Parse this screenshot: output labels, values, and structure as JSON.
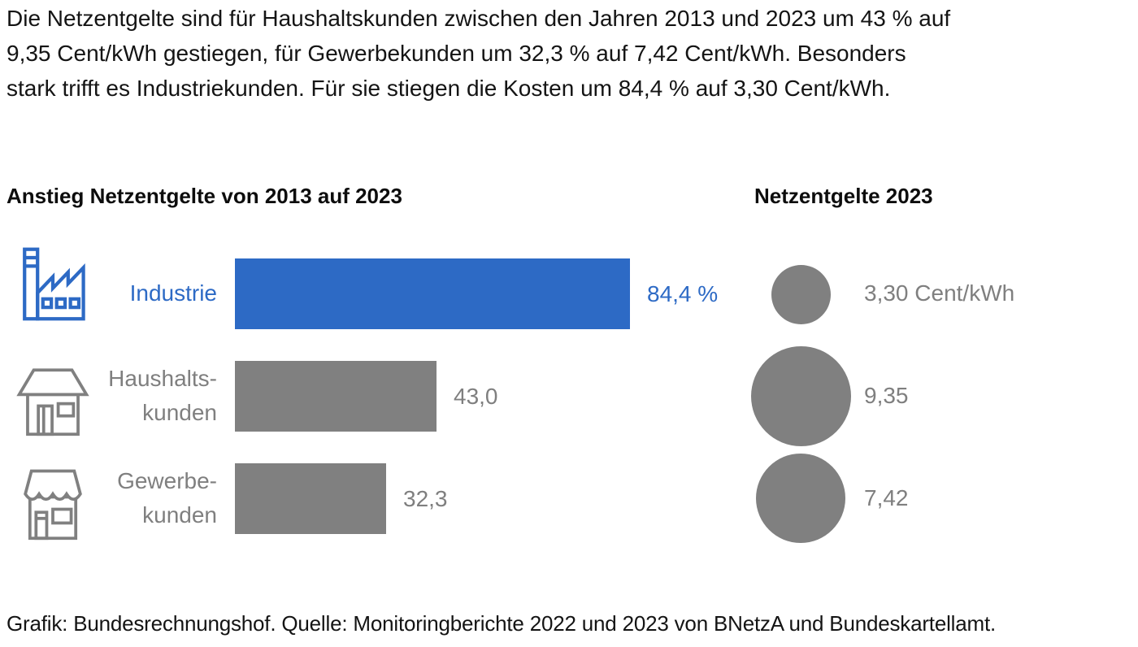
{
  "colors": {
    "accent_blue": "#2d6ac5",
    "gray": "#808080",
    "text_gray": "#7f7f7f",
    "text_dark": "#141414",
    "background": "#ffffff"
  },
  "header": {
    "text": "Die Netzentgelte sind für Haushaltskunden zwischen den Jahren 2013 und 2023 um 43 % auf\n9,35 Cent/kWh gestiegen, für Gewerbekunden um 32,3 % auf 7,42 Cent/kWh. Besonders\nstark trifft es Industriekunden. Für sie stiegen die Kosten um 84,4 % auf 3,30 Cent/kWh."
  },
  "chart_data": [
    {
      "type": "bar",
      "orientation": "horizontal",
      "title": "Anstieg Netzentgelte von 2013 auf 2023",
      "categories": [
        "Industrie",
        "Haushaltskunden",
        "Gewerbekunden"
      ],
      "category_label_lines": [
        [
          "Industrie",
          ""
        ],
        [
          "Haushalts-",
          "kunden"
        ],
        [
          "Gewerbe-",
          "kunden"
        ]
      ],
      "values": [
        84.4,
        43.0,
        32.3
      ],
      "value_labels": [
        "84,4 %",
        "43,0",
        "32,3"
      ],
      "unit": "%",
      "xlim": [
        0,
        100
      ],
      "bar_colors": [
        "#2d6ac5",
        "#808080",
        "#808080"
      ],
      "label_colors": [
        "#2d6ac5",
        "#7f7f7f",
        "#7f7f7f"
      ],
      "icons": [
        "factory-icon",
        "house-icon",
        "shop-icon"
      ],
      "grid": false,
      "legend": false
    },
    {
      "type": "bubble",
      "title": "Netzentgelte 2023",
      "categories": [
        "Industrie",
        "Haushaltskunden",
        "Gewerbekunden"
      ],
      "values": [
        3.3,
        9.35,
        7.42
      ],
      "value_labels": [
        "3,30 Cent/kWh",
        "9,35",
        "7,42"
      ],
      "unit": "Cent/kWh",
      "area_proportional_circles": true,
      "circle_color": "#808080",
      "legend": false
    }
  ],
  "footer": {
    "text": "Grafik: Bundesrechnungshof. Quelle: Monitoringberichte 2022 und 2023 von BNetzA und Bundeskartellamt."
  }
}
